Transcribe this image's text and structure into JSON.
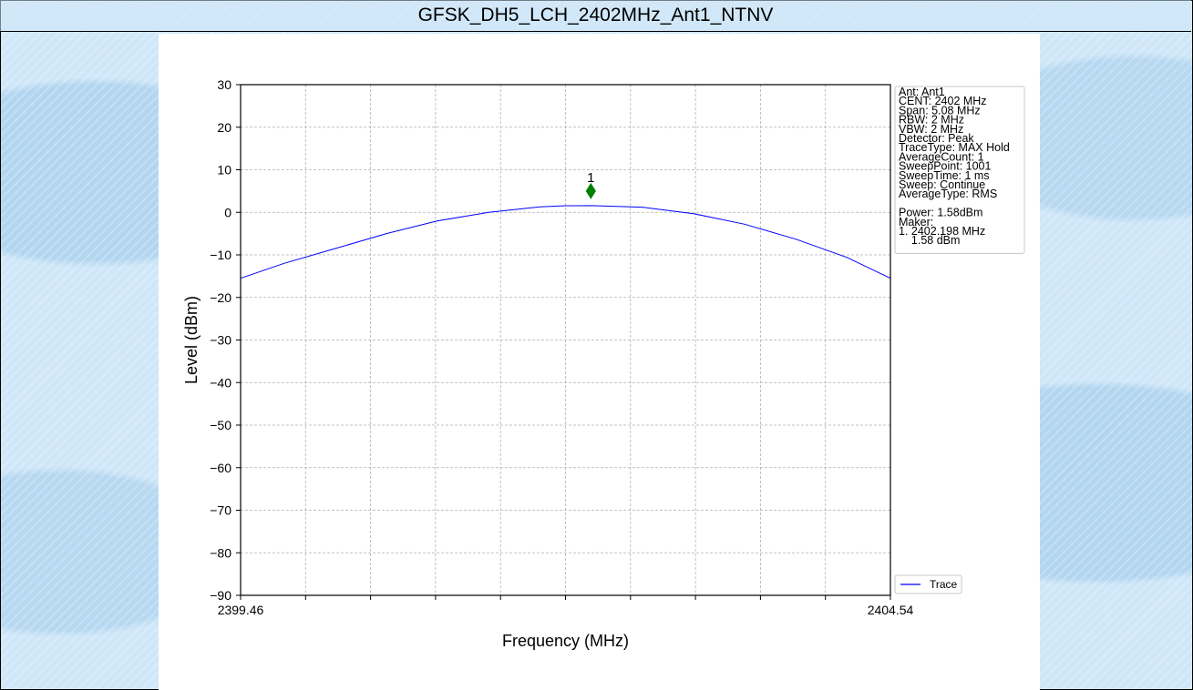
{
  "window": {
    "title": "GFSK_DH5_LCH_2402MHz_Ant1_NTNV"
  },
  "chart_data": {
    "type": "line",
    "title": "",
    "xlabel": "Frequency (MHz)",
    "ylabel": "Level (dBm)",
    "xlim": [
      2399.46,
      2404.54
    ],
    "ylim": [
      -90,
      30
    ],
    "x_tick_labels": [
      "2399.46",
      "2404.54"
    ],
    "y_ticks": [
      30,
      20,
      10,
      0,
      -10,
      -20,
      -30,
      -40,
      -50,
      -60,
      -70,
      -80,
      -90
    ],
    "grid": true,
    "series": [
      {
        "name": "Trace",
        "color": "#0000ff",
        "x": [
          2399.46,
          2399.8,
          2400.2,
          2400.6,
          2401.0,
          2401.4,
          2401.8,
          2402.0,
          2402.2,
          2402.6,
          2403.0,
          2403.4,
          2403.8,
          2404.2,
          2404.54
        ],
        "y": [
          -15.5,
          -12.0,
          -8.5,
          -5.0,
          -2.0,
          0.0,
          1.3,
          1.55,
          1.58,
          1.2,
          -0.3,
          -2.8,
          -6.3,
          -10.6,
          -15.5
        ]
      }
    ],
    "marker": {
      "label": "1",
      "x": 2402.198,
      "y": 1.58,
      "color": "#007f00"
    },
    "legend": {
      "position": "right-bottom",
      "entries": [
        "Trace"
      ]
    },
    "info_box": {
      "position": "right-top",
      "lines": [
        "Ant: Ant1",
        "CENT: 2402 MHz",
        "Span: 5.08 MHz",
        "RBW: 2 MHz",
        "VBW: 2 MHz",
        "Detector: Peak",
        "TraceType: MAX Hold",
        "AverageCount: 1",
        "SweepPoint: 1001",
        "SweepTime: 1 ms",
        "Sweep: Continue",
        "AverageType: RMS",
        "",
        "Power: 1.58dBm",
        "Maker:",
        "1. 2402.198 MHz",
        "    1.58 dBm"
      ]
    }
  }
}
